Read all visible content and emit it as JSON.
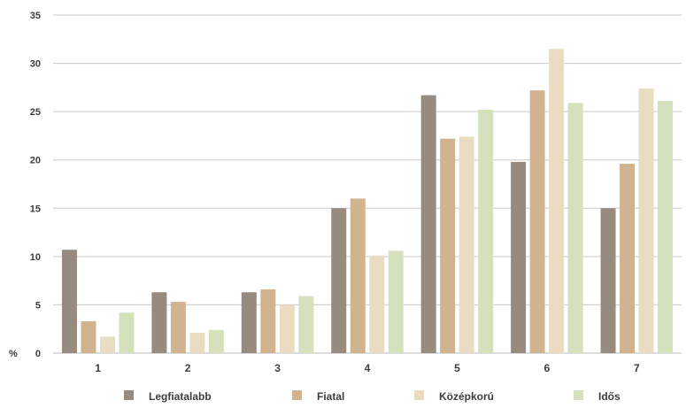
{
  "chart_data": {
    "type": "bar",
    "ylabel": "%",
    "ylim": [
      0,
      35
    ],
    "yticks": [
      0,
      5,
      10,
      15,
      20,
      25,
      30,
      35
    ],
    "categories": [
      "1",
      "2",
      "3",
      "4",
      "5",
      "6",
      "7"
    ],
    "grid": true,
    "legend_position": "bottom",
    "series": [
      {
        "name": "Legfiatalabb",
        "color": "#968b7e",
        "values": [
          10.7,
          6.3,
          6.3,
          15.0,
          26.7,
          19.8,
          15.0
        ]
      },
      {
        "name": "Fiatal",
        "color": "#d1b38f",
        "values": [
          3.3,
          5.3,
          6.6,
          16.0,
          22.2,
          27.2,
          19.6
        ]
      },
      {
        "name": "Középkorú",
        "color": "#e9dcc3",
        "values": [
          1.7,
          2.1,
          5.0,
          10.1,
          22.4,
          31.5,
          27.4
        ]
      },
      {
        "name": "Idős",
        "color": "#d5e0bd",
        "values": [
          4.2,
          2.4,
          5.9,
          10.6,
          25.2,
          25.9,
          26.1
        ]
      }
    ]
  }
}
